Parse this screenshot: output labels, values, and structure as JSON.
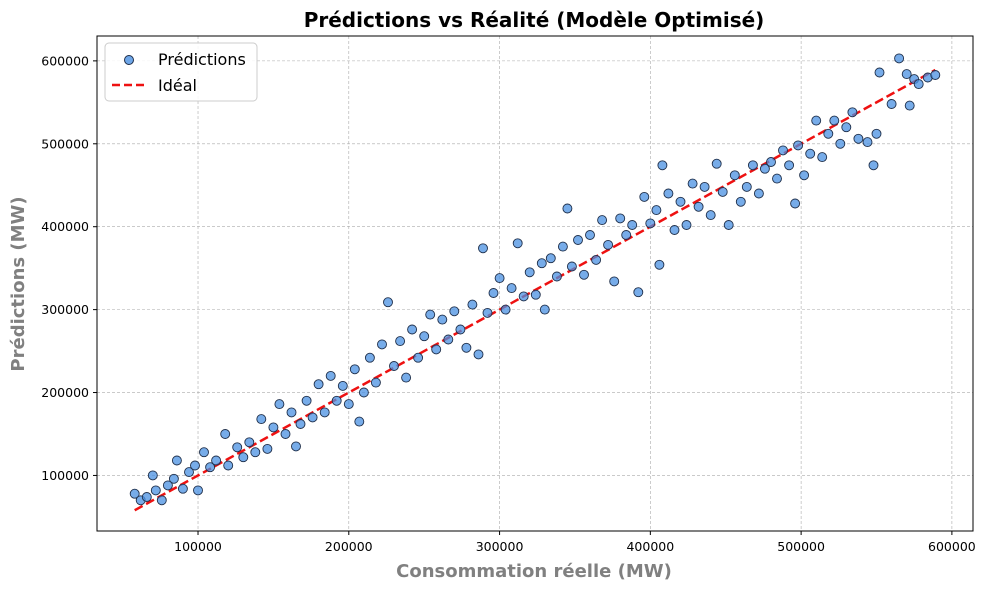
{
  "chart_data": {
    "type": "scatter",
    "title": "Prédictions vs Réalité (Modèle Optimisé)",
    "xlabel": "Consommation réelle (MW)",
    "ylabel": "Prédictions (MW)",
    "xlim": [
      33000,
      614000
    ],
    "ylim": [
      33000,
      630000
    ],
    "x_ticks": [
      100000,
      200000,
      300000,
      400000,
      500000,
      600000
    ],
    "y_ticks": [
      100000,
      200000,
      300000,
      400000,
      500000,
      600000
    ],
    "x_tick_labels": [
      "100000",
      "200000",
      "300000",
      "400000",
      "500000",
      "600000"
    ],
    "y_tick_labels": [
      "100000",
      "200000",
      "300000",
      "400000",
      "500000",
      "600000"
    ],
    "grid": true,
    "legend_position": "top-left",
    "series": [
      {
        "name": "Prédictions",
        "kind": "scatter",
        "color": "#4a90e2",
        "edge_color": "#1f2f4a",
        "points": [
          [
            58000,
            78000
          ],
          [
            62000,
            70000
          ],
          [
            66000,
            74000
          ],
          [
            70000,
            100000
          ],
          [
            72000,
            82000
          ],
          [
            76000,
            70000
          ],
          [
            80000,
            88000
          ],
          [
            84000,
            96000
          ],
          [
            86000,
            118000
          ],
          [
            90000,
            84000
          ],
          [
            94000,
            104000
          ],
          [
            98000,
            112000
          ],
          [
            100000,
            82000
          ],
          [
            104000,
            128000
          ],
          [
            108000,
            110000
          ],
          [
            112000,
            118000
          ],
          [
            118000,
            150000
          ],
          [
            120000,
            112000
          ],
          [
            126000,
            134000
          ],
          [
            130000,
            122000
          ],
          [
            134000,
            140000
          ],
          [
            138000,
            128000
          ],
          [
            142000,
            168000
          ],
          [
            146000,
            132000
          ],
          [
            150000,
            158000
          ],
          [
            154000,
            186000
          ],
          [
            158000,
            150000
          ],
          [
            162000,
            176000
          ],
          [
            165000,
            135000
          ],
          [
            168000,
            162000
          ],
          [
            172000,
            190000
          ],
          [
            176000,
            170000
          ],
          [
            180000,
            210000
          ],
          [
            184000,
            176000
          ],
          [
            188000,
            220000
          ],
          [
            192000,
            190000
          ],
          [
            196000,
            208000
          ],
          [
            200000,
            186000
          ],
          [
            204000,
            228000
          ],
          [
            207000,
            165000
          ],
          [
            210000,
            200000
          ],
          [
            214000,
            242000
          ],
          [
            218000,
            212000
          ],
          [
            222000,
            258000
          ],
          [
            226000,
            309000
          ],
          [
            230000,
            232000
          ],
          [
            234000,
            262000
          ],
          [
            238000,
            218000
          ],
          [
            242000,
            276000
          ],
          [
            246000,
            242000
          ],
          [
            250000,
            268000
          ],
          [
            254000,
            294000
          ],
          [
            258000,
            252000
          ],
          [
            262000,
            288000
          ],
          [
            266000,
            264000
          ],
          [
            270000,
            298000
          ],
          [
            274000,
            276000
          ],
          [
            278000,
            254000
          ],
          [
            282000,
            306000
          ],
          [
            286000,
            246000
          ],
          [
            289000,
            374000
          ],
          [
            292000,
            296000
          ],
          [
            296000,
            320000
          ],
          [
            300000,
            338000
          ],
          [
            304000,
            300000
          ],
          [
            308000,
            326000
          ],
          [
            312000,
            380000
          ],
          [
            316000,
            316000
          ],
          [
            320000,
            345000
          ],
          [
            324000,
            318000
          ],
          [
            328000,
            356000
          ],
          [
            330000,
            300000
          ],
          [
            334000,
            362000
          ],
          [
            338000,
            340000
          ],
          [
            342000,
            376000
          ],
          [
            345000,
            422000
          ],
          [
            348000,
            352000
          ],
          [
            352000,
            384000
          ],
          [
            356000,
            342000
          ],
          [
            360000,
            390000
          ],
          [
            364000,
            360000
          ],
          [
            368000,
            408000
          ],
          [
            372000,
            378000
          ],
          [
            376000,
            334000
          ],
          [
            380000,
            410000
          ],
          [
            384000,
            390000
          ],
          [
            388000,
            402000
          ],
          [
            392000,
            321000
          ],
          [
            396000,
            436000
          ],
          [
            400000,
            404000
          ],
          [
            404000,
            420000
          ],
          [
            406000,
            354000
          ],
          [
            408000,
            474000
          ],
          [
            412000,
            440000
          ],
          [
            416000,
            396000
          ],
          [
            420000,
            430000
          ],
          [
            424000,
            402000
          ],
          [
            428000,
            452000
          ],
          [
            432000,
            424000
          ],
          [
            436000,
            448000
          ],
          [
            440000,
            414000
          ],
          [
            444000,
            476000
          ],
          [
            448000,
            442000
          ],
          [
            452000,
            402000
          ],
          [
            456000,
            462000
          ],
          [
            460000,
            430000
          ],
          [
            464000,
            448000
          ],
          [
            468000,
            474000
          ],
          [
            472000,
            440000
          ],
          [
            476000,
            470000
          ],
          [
            480000,
            478000
          ],
          [
            484000,
            458000
          ],
          [
            488000,
            492000
          ],
          [
            492000,
            474000
          ],
          [
            496000,
            428000
          ],
          [
            498000,
            498000
          ],
          [
            502000,
            462000
          ],
          [
            506000,
            488000
          ],
          [
            510000,
            528000
          ],
          [
            514000,
            484000
          ],
          [
            518000,
            512000
          ],
          [
            522000,
            528000
          ],
          [
            526000,
            500000
          ],
          [
            530000,
            520000
          ],
          [
            534000,
            538000
          ],
          [
            538000,
            506000
          ],
          [
            544000,
            502000
          ],
          [
            548000,
            474000
          ],
          [
            550000,
            512000
          ],
          [
            552000,
            586000
          ],
          [
            560000,
            548000
          ],
          [
            565000,
            603000
          ],
          [
            570000,
            584000
          ],
          [
            572000,
            546000
          ],
          [
            575000,
            578000
          ],
          [
            578000,
            572000
          ],
          [
            584000,
            580000
          ],
          [
            589000,
            583000
          ]
        ]
      },
      {
        "name": "Idéal",
        "kind": "line",
        "style": "dashed",
        "color": "#ee1111",
        "x": [
          58000,
          589000
        ],
        "y": [
          58000,
          589000
        ]
      }
    ]
  }
}
